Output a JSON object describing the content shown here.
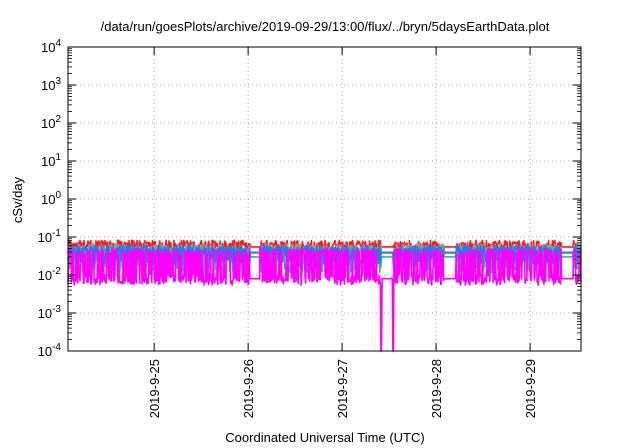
{
  "chart_data": {
    "type": "line",
    "title": "/data/run/goesPlots/archive/2019-09-29/13:00/flux/../bryn/5daysEarthData.plot",
    "xlabel": "Coordinated Universal Time (UTC)",
    "ylabel": "cSv/day",
    "y_scale": "log",
    "ylim": [
      0.0001,
      10000
    ],
    "xlim": [
      "2019-09-24T02:00",
      "2019-09-29T13:00"
    ],
    "grid": "dotted",
    "legend": "none",
    "yticks": [
      {
        "value": 0.0001,
        "base": "10",
        "exp": "-4"
      },
      {
        "value": 0.001,
        "base": "10",
        "exp": "-3"
      },
      {
        "value": 0.01,
        "base": "10",
        "exp": "-2"
      },
      {
        "value": 0.1,
        "base": "10",
        "exp": "-1"
      },
      {
        "value": 1,
        "base": "10",
        "exp": "0"
      },
      {
        "value": 10,
        "base": "10",
        "exp": "1"
      },
      {
        "value": 100,
        "base": "10",
        "exp": "2"
      },
      {
        "value": 1000,
        "base": "10",
        "exp": "3"
      },
      {
        "value": 10000,
        "base": "10",
        "exp": "4"
      }
    ],
    "xticks": [
      {
        "value": "2019-09-25T00:00",
        "label": "2019-9-25"
      },
      {
        "value": "2019-09-26T00:00",
        "label": "2019-9-26"
      },
      {
        "value": "2019-09-27T00:00",
        "label": "2019-9-27"
      },
      {
        "value": "2019-09-28T00:00",
        "label": "2019-9-28"
      },
      {
        "value": "2019-09-29T00:00",
        "label": "2019-9-29"
      }
    ],
    "data_gaps": [
      {
        "from": "2019-09-26T00:30",
        "to": "2019-09-26T03:00"
      },
      {
        "from": "2019-09-27T10:00",
        "to": "2019-09-27T13:00"
      },
      {
        "from": "2019-09-28T02:00",
        "to": "2019-09-28T05:00"
      },
      {
        "from": "2019-09-29T08:00",
        "to": "2019-09-29T11:00"
      }
    ],
    "dropouts": [
      {
        "time": "2019-09-27T10:00",
        "min": 0.0001
      },
      {
        "time": "2019-09-27T13:00",
        "min": 0.0001
      }
    ],
    "series": [
      {
        "color": "#ff1a1a",
        "high": 0.075,
        "low": 0.028,
        "baseline": 0.055
      },
      {
        "color": "#9a9a9a",
        "high": 0.06,
        "low": 0.02,
        "baseline": 0.04
      },
      {
        "color": "#2ab3a5",
        "high": 0.05,
        "low": 0.013,
        "baseline": 0.03
      },
      {
        "color": "#1f7ee8",
        "high": 0.055,
        "low": 0.022,
        "baseline": 0.038
      },
      {
        "color": "#ff00ff",
        "high": 0.045,
        "low": 0.006,
        "baseline": 0.008
      }
    ]
  }
}
